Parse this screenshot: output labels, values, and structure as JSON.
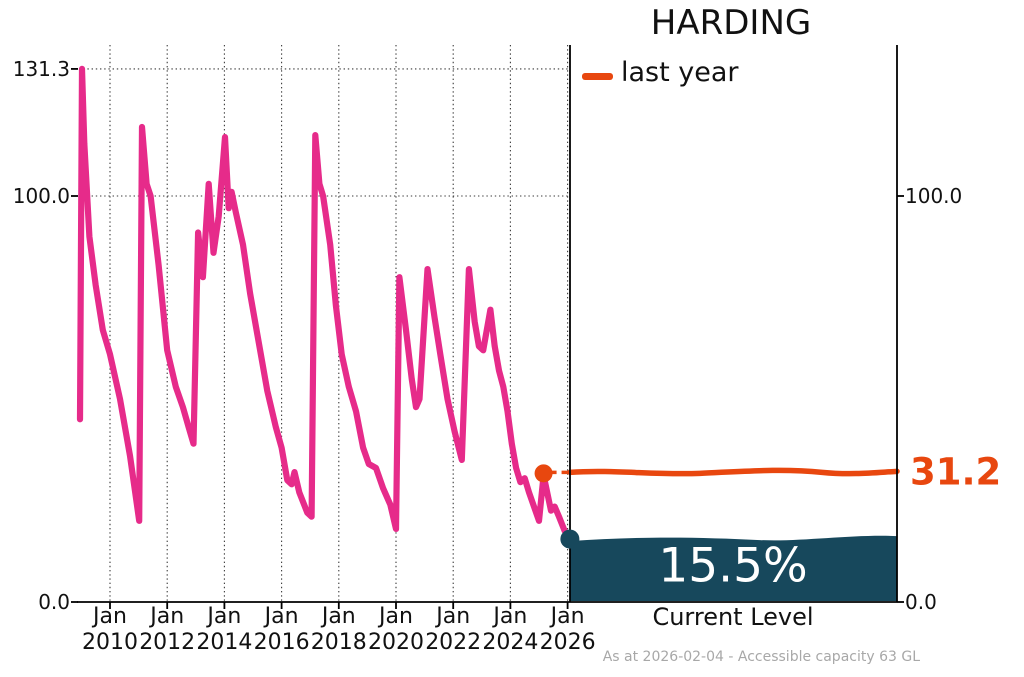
{
  "title": "HARDING",
  "legend": {
    "label": "last year"
  },
  "colors": {
    "history_line": "#e62b8a",
    "last_year_line": "#e8470f",
    "current_fill": "#17485c",
    "grid": "#3a3a3a",
    "axis": "#000000",
    "text": "#111111",
    "current_text": "#ffffff",
    "footer_text": "#a8a8a8"
  },
  "right_panel": {
    "last_year_value": "31.2",
    "current_percent": "15.5%",
    "current_level_label": "Current Level"
  },
  "footer": "As at 2026-02-04 - Accessible capacity 63 GL",
  "chart_data": {
    "type": "line",
    "title": "HARDING",
    "xlabel": "",
    "ylabel": "",
    "x_unit": "decimal_year",
    "xlim": [
      2008.9,
      2026.25
    ],
    "ylim": [
      0,
      140
    ],
    "grid": "dotted",
    "y_gridlines": [
      131.3,
      100.0
    ],
    "left_axis_ticks": [
      131.3,
      100.0,
      0.0
    ],
    "right_axis_ticks": [
      100.0,
      0.0
    ],
    "x_tick_month": "Jan",
    "x_tick_years": [
      2010,
      2012,
      2014,
      2016,
      2018,
      2020,
      2022,
      2024,
      2026
    ],
    "series": [
      {
        "name": "storage-history-percent",
        "color_key": "history_line",
        "points": [
          [
            2008.95,
            45
          ],
          [
            2009.02,
            131.3
          ],
          [
            2009.1,
            113
          ],
          [
            2009.28,
            90
          ],
          [
            2009.5,
            78
          ],
          [
            2009.75,
            67
          ],
          [
            2010.0,
            61
          ],
          [
            2010.35,
            50
          ],
          [
            2010.7,
            36
          ],
          [
            2010.88,
            27
          ],
          [
            2011.02,
            20
          ],
          [
            2011.12,
            117
          ],
          [
            2011.28,
            103
          ],
          [
            2011.42,
            100
          ],
          [
            2011.7,
            83
          ],
          [
            2012.0,
            62
          ],
          [
            2012.3,
            53
          ],
          [
            2012.55,
            48
          ],
          [
            2012.75,
            43
          ],
          [
            2012.92,
            39
          ],
          [
            2013.08,
            91
          ],
          [
            2013.25,
            80
          ],
          [
            2013.45,
            103
          ],
          [
            2013.62,
            86
          ],
          [
            2013.8,
            95
          ],
          [
            2014.02,
            114.5
          ],
          [
            2014.15,
            97
          ],
          [
            2014.25,
            101
          ],
          [
            2014.4,
            96
          ],
          [
            2014.65,
            88
          ],
          [
            2014.9,
            76
          ],
          [
            2015.2,
            64
          ],
          [
            2015.5,
            52
          ],
          [
            2015.8,
            43
          ],
          [
            2016.0,
            38
          ],
          [
            2016.2,
            30
          ],
          [
            2016.35,
            29
          ],
          [
            2016.45,
            32
          ],
          [
            2016.62,
            27
          ],
          [
            2016.9,
            22
          ],
          [
            2017.05,
            21
          ],
          [
            2017.18,
            115
          ],
          [
            2017.32,
            103
          ],
          [
            2017.45,
            100
          ],
          [
            2017.7,
            88
          ],
          [
            2017.9,
            73
          ],
          [
            2018.1,
            61
          ],
          [
            2018.35,
            53
          ],
          [
            2018.6,
            47
          ],
          [
            2018.85,
            38
          ],
          [
            2019.05,
            34
          ],
          [
            2019.3,
            33
          ],
          [
            2019.55,
            28
          ],
          [
            2019.8,
            24
          ],
          [
            2020.0,
            18
          ],
          [
            2020.12,
            80
          ],
          [
            2020.35,
            67
          ],
          [
            2020.55,
            55
          ],
          [
            2020.7,
            48
          ],
          [
            2020.82,
            50
          ],
          [
            2021.1,
            82
          ],
          [
            2021.35,
            70
          ],
          [
            2021.55,
            61
          ],
          [
            2021.8,
            50
          ],
          [
            2022.05,
            42
          ],
          [
            2022.3,
            35
          ],
          [
            2022.55,
            82
          ],
          [
            2022.75,
            69
          ],
          [
            2022.9,
            63
          ],
          [
            2023.05,
            62
          ],
          [
            2023.3,
            72
          ],
          [
            2023.45,
            63
          ],
          [
            2023.6,
            57
          ],
          [
            2023.75,
            53
          ],
          [
            2023.9,
            47
          ],
          [
            2024.05,
            39
          ],
          [
            2024.2,
            33
          ],
          [
            2024.35,
            29.5
          ],
          [
            2024.5,
            30.5
          ],
          [
            2024.65,
            27
          ],
          [
            2024.85,
            23
          ],
          [
            2025.0,
            20
          ],
          [
            2025.16,
            31.2
          ],
          [
            2025.3,
            26.5
          ],
          [
            2025.42,
            22.5
          ],
          [
            2025.55,
            23.5
          ],
          [
            2025.7,
            21
          ],
          [
            2025.9,
            17.5
          ],
          [
            2026.08,
            15.5
          ]
        ]
      }
    ],
    "last_year": {
      "value": 31.2,
      "marker_x": 2025.16
    },
    "current_level": {
      "value": 15.5,
      "end_x": 2026.08
    },
    "legend": [
      "last year"
    ],
    "legend_position": "upper right"
  }
}
